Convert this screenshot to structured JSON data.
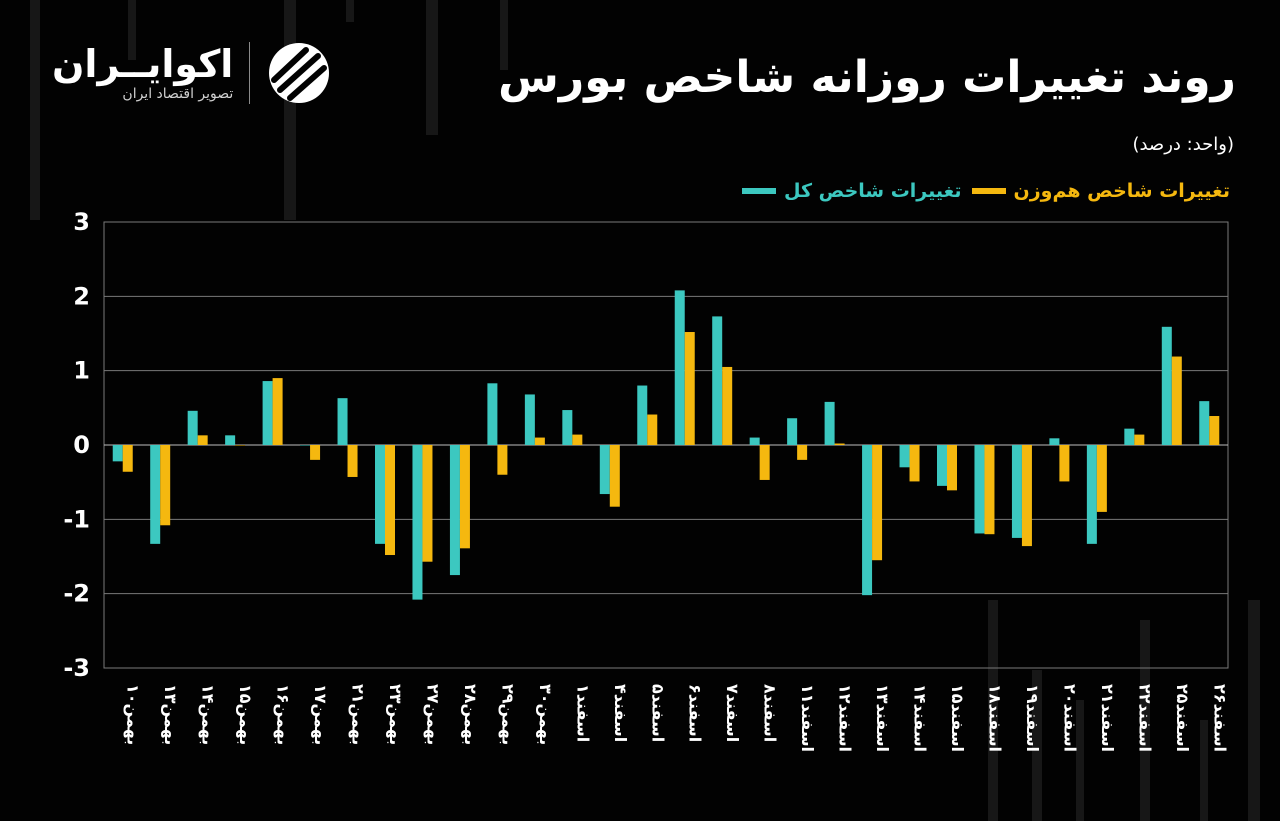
{
  "header": {
    "title": "روند تغییرات روزانه شاخص بورس",
    "unit": "(واحد: درصد)"
  },
  "brand": {
    "name": "اکوایــران",
    "tagline": "تصویر اقتصاد ایران",
    "icon": "ecoiran-logo-icon"
  },
  "colors": {
    "background": "#020202",
    "total_index": "#3cc8c0",
    "equal_weight_index": "#f5b80f",
    "grid": "#7a7a7a"
  },
  "chart_data": {
    "type": "bar",
    "title": "روند تغییرات روزانه شاخص بورس",
    "ylabel": "",
    "xlabel": "",
    "ylim": [
      -3,
      3
    ],
    "yticks": [
      3,
      2,
      1,
      0,
      -1,
      -2,
      -3
    ],
    "ytick_labels": [
      "3",
      "2",
      "1",
      "0",
      "-1",
      "-2",
      "-3"
    ],
    "grid": true,
    "legend_position": "top-right",
    "categories": [
      "بهمن۱۰",
      "بهمن۱۳",
      "بهمن۱۴",
      "بهمن۱۵",
      "بهمن۱۶",
      "بهمن۱۷",
      "بهمن۲۱",
      "بهمن۲۳",
      "بهمن۲۷",
      "بهمن۲۸",
      "بهمن۲۹",
      "بهمن۳۰",
      "اسفند۱",
      "اسفند۴",
      "اسفند۵",
      "اسفند۶",
      "اسفند۷",
      "اسفند۸",
      "اسفند۱۱",
      "اسفند۱۲",
      "اسفند۱۳",
      "اسفند۱۴",
      "اسفند۱۵",
      "اسفند۱۸",
      "اسفند۱۹",
      "اسفند۲۰",
      "اسفند۲۱",
      "اسفند۲۲",
      "اسفند۲۵",
      "اسفند۲۶"
    ],
    "series": [
      {
        "name": "تغییرات شاخص کل",
        "color": "#3cc8c0",
        "values": [
          -0.22,
          -1.33,
          0.46,
          0.13,
          0.86,
          0,
          0.63,
          -1.33,
          -2.08,
          -1.75,
          0.83,
          0.68,
          0.47,
          -0.66,
          0.8,
          2.08,
          1.73,
          0.1,
          0.36,
          0.58,
          -2.02,
          -0.3,
          -0.55,
          -1.19,
          -1.25,
          0.09,
          -1.33,
          0.22,
          1.59,
          0.59
        ]
      },
      {
        "name": "تغییرات شاخص هم‌وزن",
        "color": "#f5b80f",
        "values": [
          -0.36,
          -1.08,
          0.13,
          0,
          0.9,
          -0.2,
          -0.43,
          -1.48,
          -1.57,
          -1.39,
          -0.4,
          0.1,
          0.14,
          -0.83,
          0.41,
          1.52,
          1.05,
          -0.47,
          -0.2,
          0.02,
          -1.55,
          -0.49,
          -0.61,
          -1.2,
          -1.36,
          -0.49,
          -0.9,
          0.14,
          1.19,
          0.39
        ]
      }
    ]
  }
}
